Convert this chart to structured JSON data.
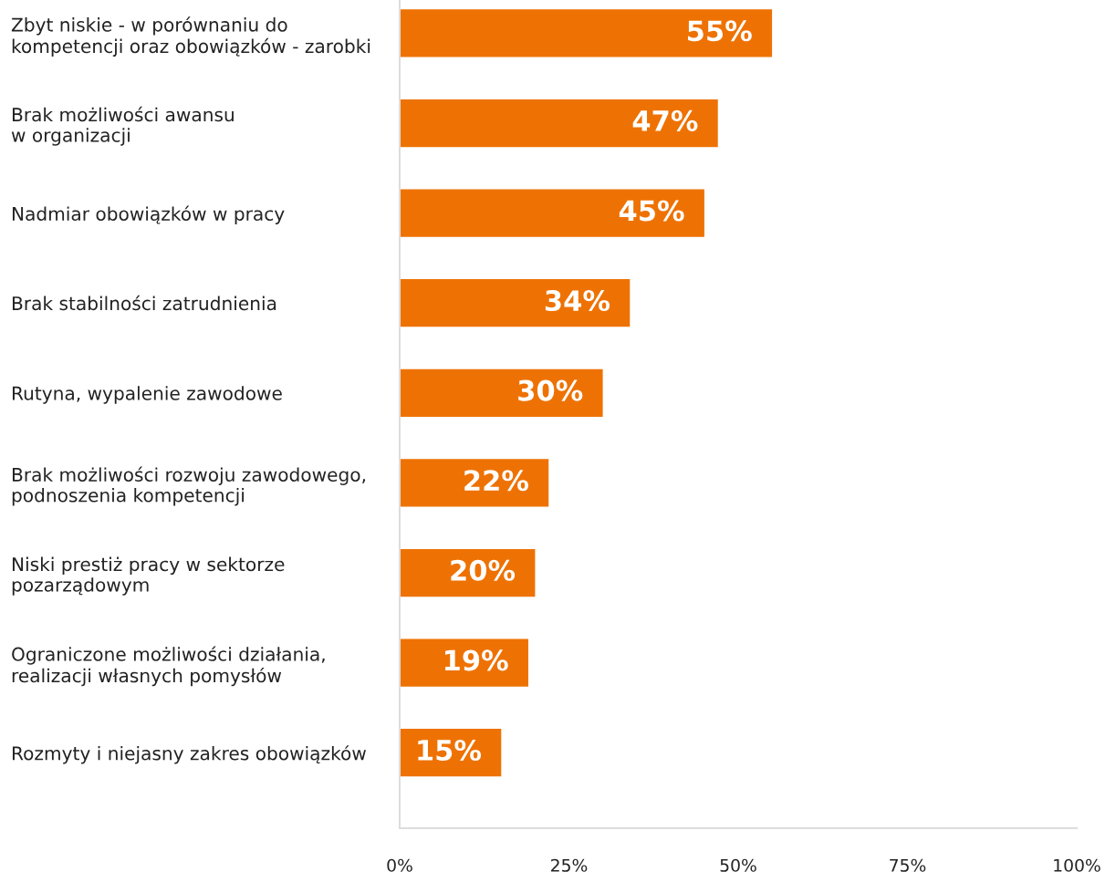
{
  "chart_data": {
    "type": "bar",
    "orientation": "horizontal",
    "categories": [
      "Zbyt niskie - w porównaniu do\nkompetencji oraz obowiązków - zarobki",
      "Brak możliwości awansu\nw organizacji",
      "Nadmiar obowiązków w pracy",
      "Brak stabilności zatrudnienia",
      "Rutyna, wypalenie zawodowe",
      "Brak możliwości rozwoju zawodowego,\npodnoszenia kompetencji",
      "Niski prestiż pracy w sektorze\npozarządowym",
      "Ograniczone możliwości działania,\nrealizacji własnych pomysłów",
      "Rozmyty i niejasny zakres obowiązków"
    ],
    "values": [
      55,
      47,
      45,
      34,
      30,
      22,
      20,
      19,
      15
    ],
    "value_labels": [
      "55%",
      "47%",
      "45%",
      "34%",
      "30%",
      "22%",
      "20%",
      "19%",
      "15%"
    ],
    "color": "#ee7203",
    "xlim": [
      0,
      100
    ],
    "xticks": [
      {
        "value": 0,
        "label": "0%"
      },
      {
        "value": 25,
        "label": "25%"
      },
      {
        "value": 50,
        "label": "50%"
      },
      {
        "value": 75,
        "label": "75%"
      },
      {
        "value": 100,
        "label": "100%"
      }
    ],
    "grid": false,
    "legend": false
  }
}
